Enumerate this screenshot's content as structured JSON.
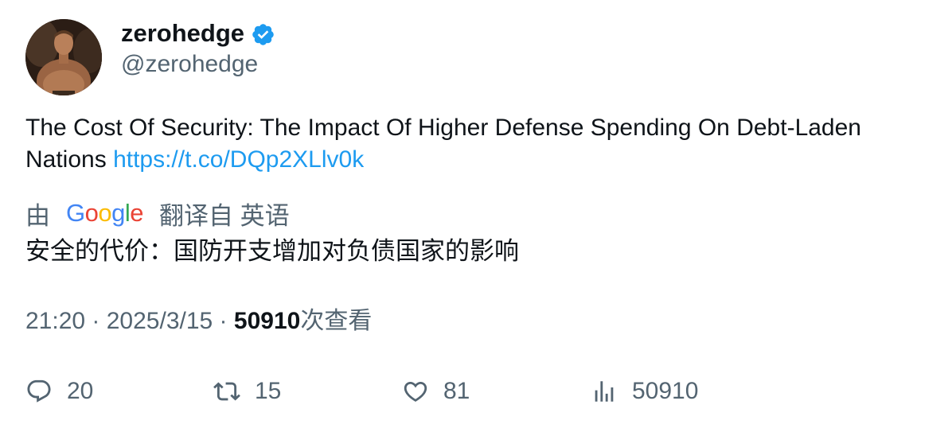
{
  "author": {
    "display_name": "zerohedge",
    "handle": "@zerohedge",
    "verified": true,
    "avatar_icon": "avatar-photo-icon"
  },
  "tweet": {
    "text": "The Cost Of Security: The Impact Of Higher Defense Spending On Debt-Laden Nations ",
    "link": "https://t.co/DQp2XLlv0k"
  },
  "translation": {
    "by_label": "由",
    "provider": "Google",
    "from_label": "翻译自 英语",
    "translated_text": "安全的代价：国防开支增加对负债国家的影响"
  },
  "meta": {
    "time": "21:20",
    "separator": " · ",
    "date": "2025/3/15",
    "views_count": "50910",
    "views_label": "次查看"
  },
  "actions": {
    "replies": "20",
    "retweets": "15",
    "likes": "81",
    "views": "50910"
  },
  "colors": {
    "link": "#1d9bf0",
    "muted": "#536471",
    "text": "#0f1419",
    "verified": "#1d9bf0"
  }
}
